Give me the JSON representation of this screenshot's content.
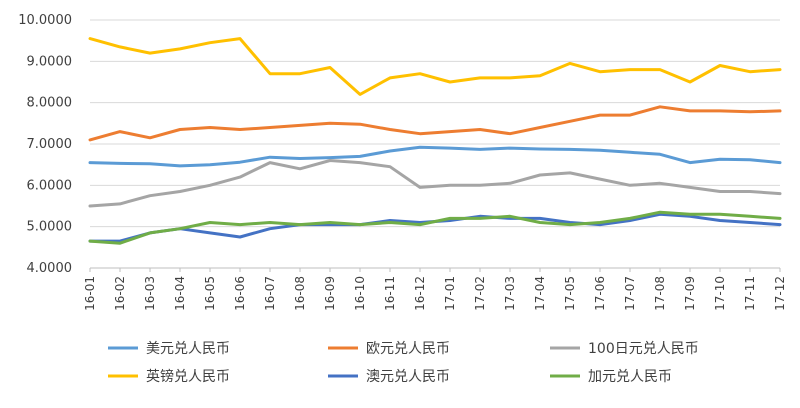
{
  "chart_data": {
    "type": "line",
    "title": "",
    "xlabel": "",
    "ylabel": "",
    "ylim": [
      4,
      10
    ],
    "yticks": [
      "4.0000",
      "5.0000",
      "6.0000",
      "7.0000",
      "8.0000",
      "9.0000",
      "10.0000"
    ],
    "categories": [
      "16-01",
      "16-02",
      "16-03",
      "16-04",
      "16-05",
      "16-06",
      "16-07",
      "16-08",
      "16-09",
      "16-10",
      "16-11",
      "16-12",
      "17-01",
      "17-02",
      "17-03",
      "17-04",
      "17-05",
      "17-06",
      "17-07",
      "17-08",
      "17-09",
      "17-10",
      "17-11",
      "17-12"
    ],
    "grid": "horizontal",
    "legend_position": "bottom",
    "series": [
      {
        "name": "美元兑人民币",
        "color": "#5B9BD5",
        "values": [
          6.55,
          6.53,
          6.52,
          6.47,
          6.5,
          6.56,
          6.68,
          6.65,
          6.67,
          6.7,
          6.83,
          6.92,
          6.9,
          6.87,
          6.9,
          6.88,
          6.87,
          6.85,
          6.8,
          6.75,
          6.55,
          6.63,
          6.62,
          6.55
        ]
      },
      {
        "name": "欧元兑人民币",
        "color": "#ED7D31",
        "values": [
          7.1,
          7.3,
          7.15,
          7.35,
          7.4,
          7.35,
          7.4,
          7.45,
          7.5,
          7.48,
          7.35,
          7.25,
          7.3,
          7.35,
          7.25,
          7.4,
          7.55,
          7.7,
          7.7,
          7.9,
          7.8,
          7.8,
          7.78,
          7.8
        ]
      },
      {
        "name": "100日元兑人民币",
        "color": "#A5A5A5",
        "values": [
          5.5,
          5.55,
          5.75,
          5.85,
          6.0,
          6.2,
          6.55,
          6.4,
          6.6,
          6.55,
          6.45,
          5.95,
          6.0,
          6.0,
          6.05,
          6.25,
          6.3,
          6.15,
          6.0,
          6.05,
          5.95,
          5.85,
          5.85,
          5.8
        ]
      },
      {
        "name": "英镑兑人民币",
        "color": "#FFC000",
        "values": [
          9.55,
          9.35,
          9.2,
          9.3,
          9.45,
          9.55,
          8.7,
          8.7,
          8.85,
          8.2,
          8.6,
          8.7,
          8.5,
          8.6,
          8.6,
          8.65,
          8.95,
          8.75,
          8.8,
          8.8,
          8.5,
          8.9,
          8.75,
          8.8
        ]
      },
      {
        "name": "澳元兑人民币",
        "color": "#4472C4",
        "values": [
          4.65,
          4.65,
          4.85,
          4.95,
          4.85,
          4.75,
          4.95,
          5.05,
          5.05,
          5.05,
          5.15,
          5.1,
          5.15,
          5.25,
          5.2,
          5.2,
          5.1,
          5.05,
          5.15,
          5.3,
          5.25,
          5.15,
          5.1,
          5.05
        ]
      },
      {
        "name": "加元兑人民币",
        "color": "#70AD47",
        "values": [
          4.65,
          4.6,
          4.85,
          4.95,
          5.1,
          5.05,
          5.1,
          5.05,
          5.1,
          5.05,
          5.1,
          5.05,
          5.2,
          5.2,
          5.25,
          5.1,
          5.05,
          5.1,
          5.2,
          5.35,
          5.3,
          5.3,
          5.25,
          5.2
        ]
      }
    ]
  }
}
